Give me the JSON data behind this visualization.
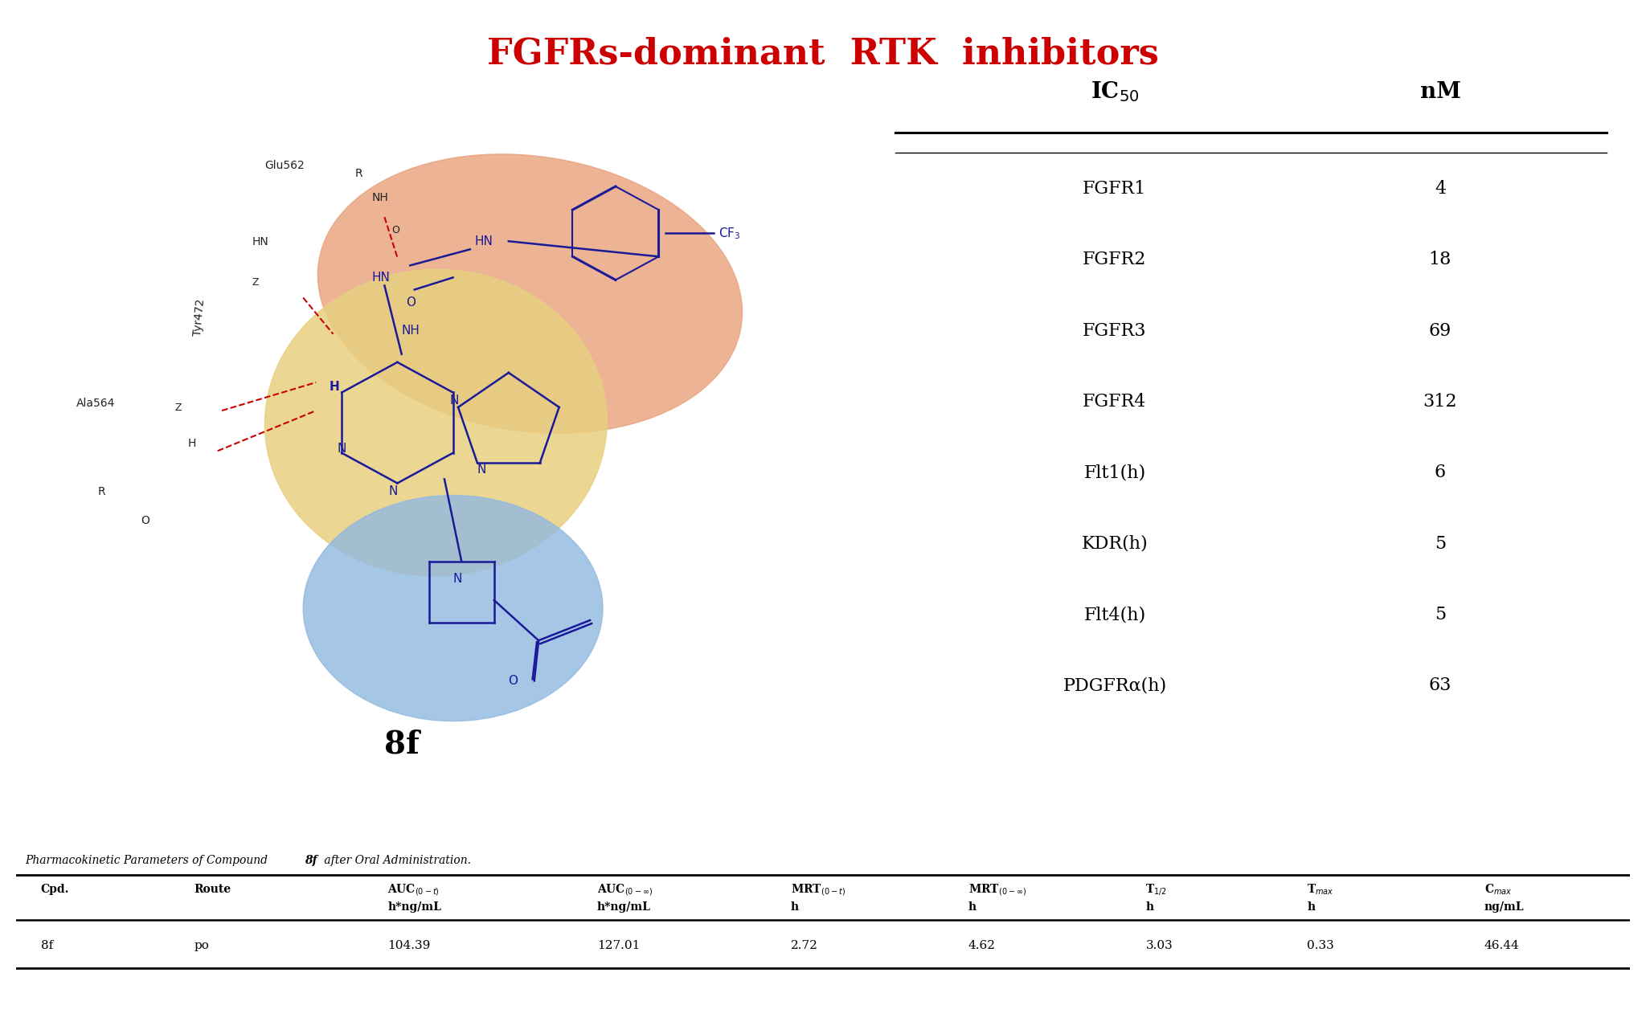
{
  "title": "FGFRs-dominant  RTK  inhibitors",
  "title_color": "#CC0000",
  "title_fontsize": 32,
  "compound_label": "8f",
  "ic50_rows": [
    [
      "FGFR1",
      "4"
    ],
    [
      "FGFR2",
      "18"
    ],
    [
      "FGFR3",
      "69"
    ],
    [
      "FGFR4",
      "312"
    ],
    [
      "Flt1(h)",
      "6"
    ],
    [
      "KDR(h)",
      "5"
    ],
    [
      "Flt4(h)",
      "5"
    ],
    [
      "PDGFRα(h)",
      "63"
    ]
  ],
  "pk_caption_normal": "Pharmacokinetic Parameters of Compound ",
  "pk_caption_bold": "8f",
  "pk_caption_end": " after Oral Administration.",
  "pk_row": [
    "8f",
    "po",
    "104.39",
    "127.01",
    "2.72",
    "4.62",
    "3.03",
    "0.33",
    "46.44"
  ],
  "blob_salmon_color": "#E8A07A",
  "blob_yellow_color": "#E8D080",
  "blob_blue_color": "#90B8E0",
  "bg_color": "#FFFFFF",
  "mol_color": "#1A1A99"
}
